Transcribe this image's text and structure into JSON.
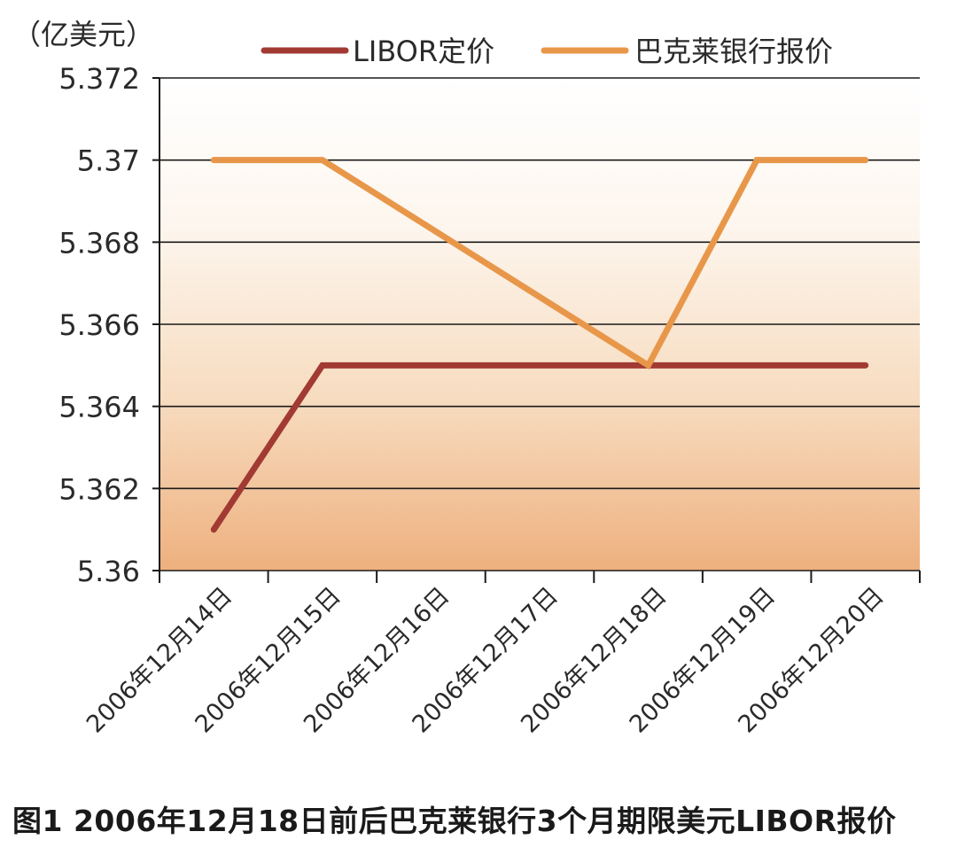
{
  "caption": "图1 2006年12月18日前后巴克莱银行3个月期限美元LIBOR报价",
  "chart_data": {
    "type": "line",
    "ylabel": "（亿美元）",
    "ylim": [
      5.36,
      5.372
    ],
    "yticks": [
      "5.372",
      "5.37",
      "5.368",
      "5.366",
      "5.364",
      "5.362",
      "5.36"
    ],
    "categories": [
      "2006年12月14日",
      "2006年12月15日",
      "2006年12月16日",
      "2006年12月17日",
      "2006年12月18日",
      "2006年12月19日",
      "2006年12月20日"
    ],
    "legend_position": "top",
    "grid": true,
    "series": [
      {
        "name": "LIBOR定价",
        "color": "#a23a34",
        "points": [
          [
            0,
            5.361
          ],
          [
            1,
            5.365
          ],
          [
            2,
            5.365
          ],
          [
            3,
            5.365
          ],
          [
            4,
            5.365
          ],
          [
            5,
            5.365
          ],
          [
            6,
            5.365
          ]
        ]
      },
      {
        "name": "巴克莱银行报价",
        "color": "#e8974a",
        "points": [
          [
            0,
            5.37
          ],
          [
            1,
            5.37
          ],
          [
            4,
            5.365
          ],
          [
            5,
            5.37
          ],
          [
            6,
            5.37
          ]
        ]
      }
    ]
  }
}
